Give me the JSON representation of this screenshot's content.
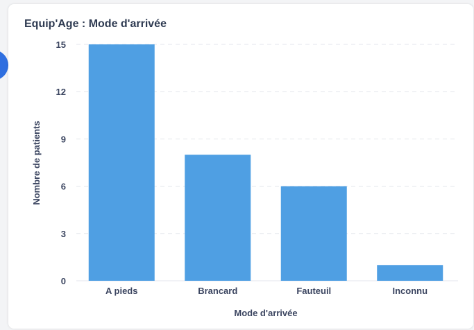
{
  "card": {
    "title": "Equip'Age : Mode d'arrivée"
  },
  "colors": {
    "bar": "#4f9fe3",
    "grid": "#e3e6ec",
    "text": "#3b4560",
    "accent": "#2f6fe0"
  },
  "chart_data": {
    "type": "bar",
    "title": "Equip'Age : Mode d'arrivée",
    "xlabel": "Mode d'arrivée",
    "ylabel": "Nombre de patients",
    "categories": [
      "A pieds",
      "Brancard",
      "Fauteuil",
      "Inconnu"
    ],
    "values": [
      15,
      8,
      6,
      1
    ],
    "yticks": [
      0,
      3,
      6,
      9,
      12,
      15
    ],
    "ylim": [
      0,
      15
    ],
    "grid": "horizontal dashed",
    "legend": "none"
  }
}
